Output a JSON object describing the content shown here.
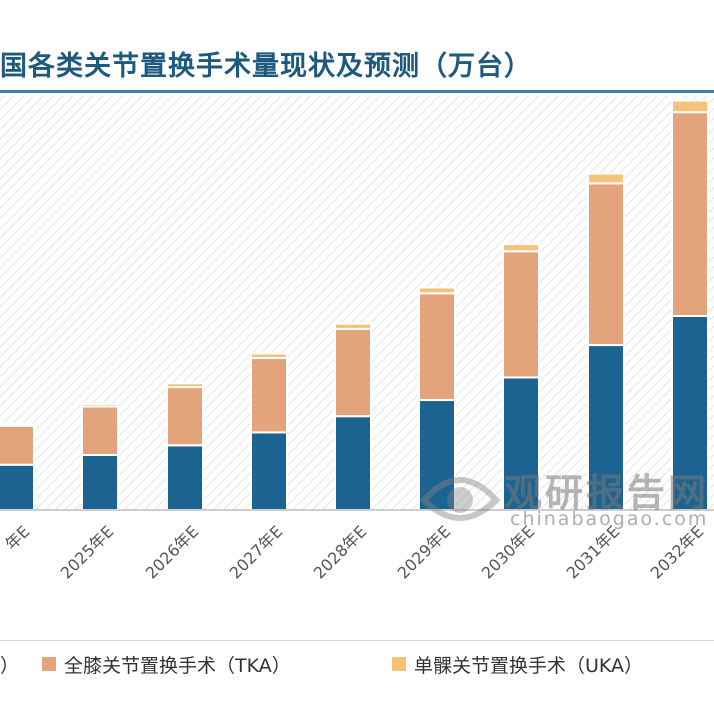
{
  "chart_data": {
    "type": "bar",
    "stacked": true,
    "title": "国各类关节置换手术量现状及预测（万台）",
    "categories": [
      "年E",
      "2025年E",
      "2026年E",
      "2027年E",
      "2028年E",
      "2029年E",
      "2030年E",
      "2031年E",
      "2032年E"
    ],
    "series": [
      {
        "name": "",
        "color": "#1b6491",
        "values": [
          7.0,
          8.5,
          10.0,
          12.0,
          14.5,
          17.0,
          20.5,
          25.5,
          30.0
        ]
      },
      {
        "name": "全膝关节置换手术（TKA）",
        "color": "#e3a37b",
        "values": [
          6.0,
          7.5,
          9.0,
          11.5,
          13.5,
          16.5,
          19.5,
          25.0,
          31.5
        ]
      },
      {
        "name": "单髁关节置换手术（UKA）",
        "color": "#f6c27a",
        "values": [
          0.3,
          0.4,
          0.6,
          0.7,
          0.8,
          0.9,
          1.1,
          1.5,
          1.8
        ]
      }
    ],
    "ylim": [
      0,
      64
    ],
    "grid": false,
    "legend_position": "bottom",
    "xlabel": "",
    "ylabel": ""
  },
  "legend": {
    "partial_label": "）",
    "tka_label": "全膝关节置换手术（TKA）",
    "uka_label": "单髁关节置换手术（UKA）"
  },
  "watermark": {
    "name": "观研报告网",
    "url": "chinabaogao.com"
  }
}
